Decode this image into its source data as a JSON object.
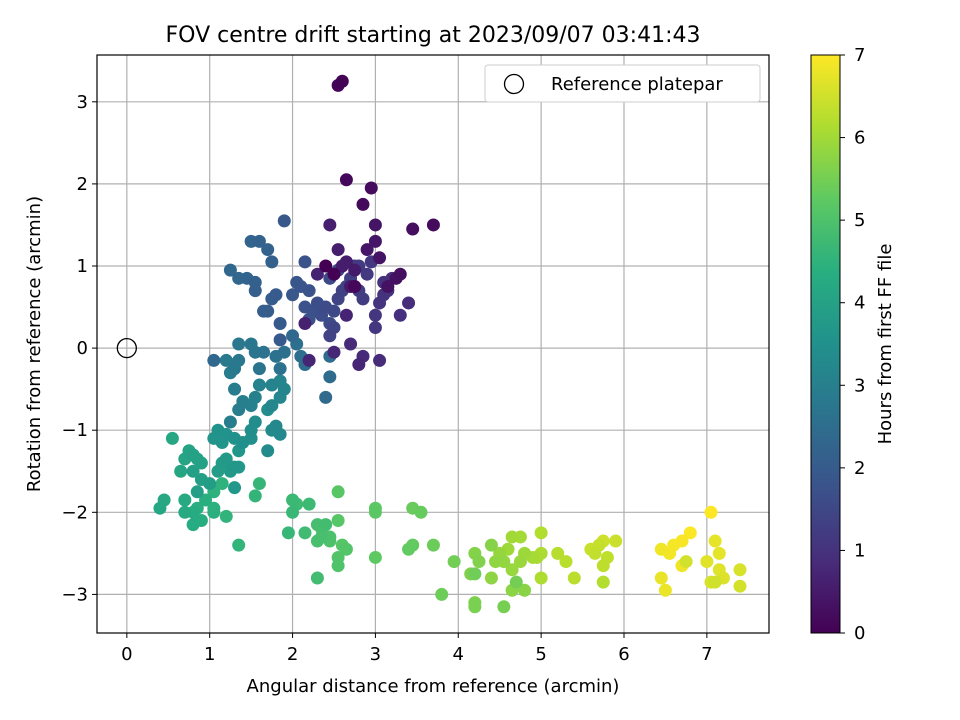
{
  "chart_data": {
    "type": "scatter",
    "title": "FOV centre drift starting at 2023/09/07 03:41:43",
    "xlabel": "Angular distance from reference (arcmin)",
    "ylabel": "Rotation from reference (arcmin)",
    "xlim": [
      -0.36,
      7.75
    ],
    "ylim": [
      -3.47,
      3.57
    ],
    "xticks": [
      0,
      1,
      2,
      3,
      4,
      5,
      6,
      7
    ],
    "yticks": [
      -3,
      -2,
      -1,
      0,
      1,
      2,
      3
    ],
    "grid": true,
    "legend": {
      "placement": "top-right",
      "entries": [
        "Reference platepar"
      ]
    },
    "colorbar": {
      "label": "Hours from first FF file",
      "range": [
        0,
        7
      ],
      "ticks": [
        0,
        1,
        2,
        3,
        4,
        5,
        6,
        7
      ],
      "colormap": "viridis"
    },
    "reference_point": {
      "x": 0,
      "y": 0
    },
    "series": [
      {
        "points": [
          [
            7.05,
            -2.0
          ],
          [
            6.8,
            -2.25
          ],
          [
            6.7,
            -2.35
          ],
          [
            6.6,
            -2.4
          ],
          [
            6.55,
            -2.5
          ],
          [
            6.45,
            -2.45
          ],
          [
            6.7,
            -2.65
          ],
          [
            6.5,
            -2.95
          ],
          [
            6.45,
            -2.8
          ],
          [
            7.1,
            -2.35
          ],
          [
            7.15,
            -2.5
          ],
          [
            7.0,
            -2.6
          ],
          [
            7.15,
            -2.7
          ],
          [
            7.2,
            -2.8
          ],
          [
            7.4,
            -2.7
          ],
          [
            7.05,
            -2.85
          ],
          [
            7.4,
            -2.9
          ],
          [
            6.75,
            -2.6
          ],
          [
            7.1,
            -2.85
          ],
          [
            5.75,
            -2.35
          ],
          [
            5.9,
            -2.35
          ],
          [
            5.6,
            -2.45
          ],
          [
            5.7,
            -2.4
          ],
          [
            5.65,
            -2.5
          ],
          [
            5.8,
            -2.55
          ],
          [
            5.75,
            -2.65
          ],
          [
            5.4,
            -2.8
          ],
          [
            5.3,
            -2.6
          ],
          [
            5.2,
            -2.5
          ],
          [
            5.75,
            -2.85
          ],
          [
            5.0,
            -2.25
          ],
          [
            5.0,
            -2.8
          ],
          [
            5.0,
            -2.5
          ],
          [
            4.95,
            -2.55
          ],
          [
            4.9,
            -2.55
          ],
          [
            4.75,
            -2.3
          ],
          [
            4.65,
            -2.3
          ],
          [
            4.6,
            -2.45
          ],
          [
            4.8,
            -2.5
          ],
          [
            4.75,
            -2.6
          ],
          [
            4.65,
            -2.7
          ],
          [
            4.5,
            -2.5
          ],
          [
            4.55,
            -2.6
          ],
          [
            4.45,
            -2.6
          ],
          [
            4.4,
            -2.8
          ],
          [
            4.65,
            -2.95
          ],
          [
            4.8,
            -2.95
          ],
          [
            4.4,
            -2.4
          ],
          [
            4.2,
            -2.5
          ],
          [
            4.25,
            -2.6
          ],
          [
            4.15,
            -2.75
          ],
          [
            4.2,
            -3.1
          ],
          [
            4.2,
            -3.15
          ],
          [
            4.55,
            -3.15
          ],
          [
            4.7,
            -2.85
          ],
          [
            3.95,
            -2.6
          ],
          [
            4.2,
            -2.75
          ],
          [
            3.8,
            -3.0
          ],
          [
            3.7,
            -2.4
          ],
          [
            3.45,
            -1.95
          ],
          [
            3.55,
            -2.0
          ],
          [
            3.45,
            -2.4
          ],
          [
            3.4,
            -2.45
          ],
          [
            3.0,
            -2.55
          ],
          [
            3.0,
            -1.95
          ],
          [
            3.0,
            -2.0
          ],
          [
            2.55,
            -1.75
          ],
          [
            2.55,
            -2.1
          ],
          [
            2.6,
            -2.4
          ],
          [
            2.65,
            -2.45
          ],
          [
            2.55,
            -2.55
          ],
          [
            2.55,
            -2.65
          ],
          [
            2.45,
            -2.35
          ],
          [
            2.45,
            -2.3
          ],
          [
            2.35,
            -2.2
          ],
          [
            2.3,
            -2.35
          ],
          [
            2.35,
            -2.3
          ],
          [
            2.3,
            -2.15
          ],
          [
            2.4,
            -2.15
          ],
          [
            2.3,
            -2.8
          ],
          [
            2.15,
            -2.25
          ],
          [
            2.05,
            -1.9
          ],
          [
            2.2,
            -1.9
          ],
          [
            2.0,
            -1.85
          ],
          [
            2.0,
            -2.0
          ],
          [
            1.95,
            -2.25
          ],
          [
            1.6,
            -1.65
          ],
          [
            1.55,
            -1.8
          ],
          [
            1.35,
            -2.4
          ],
          [
            1.2,
            -2.05
          ],
          [
            1.15,
            -1.65
          ],
          [
            1.05,
            -1.75
          ],
          [
            1.05,
            -1.95
          ],
          [
            1.05,
            -2.0
          ],
          [
            0.95,
            -1.85
          ],
          [
            0.85,
            -1.95
          ],
          [
            0.9,
            -2.1
          ],
          [
            0.8,
            -2.15
          ],
          [
            0.8,
            -2.0
          ],
          [
            0.7,
            -2.0
          ],
          [
            0.7,
            -1.85
          ],
          [
            0.45,
            -1.85
          ],
          [
            0.4,
            -1.95
          ],
          [
            0.55,
            -1.1
          ],
          [
            0.65,
            -1.5
          ],
          [
            0.7,
            -1.35
          ],
          [
            0.75,
            -1.25
          ],
          [
            0.8,
            -1.3
          ],
          [
            0.85,
            -1.35
          ],
          [
            0.9,
            -1.4
          ],
          [
            0.8,
            -1.5
          ],
          [
            0.9,
            -1.6
          ],
          [
            0.85,
            -1.75
          ],
          [
            1.0,
            -1.65
          ],
          [
            1.1,
            -1.5
          ],
          [
            1.15,
            -1.4
          ],
          [
            1.2,
            -1.35
          ],
          [
            1.25,
            -1.5
          ],
          [
            1.3,
            -1.45
          ],
          [
            1.35,
            -1.45
          ],
          [
            1.3,
            -1.7
          ],
          [
            1.35,
            -1.25
          ],
          [
            1.15,
            -1.15
          ],
          [
            1.05,
            -1.1
          ],
          [
            1.1,
            -1.0
          ],
          [
            1.2,
            -1.05
          ],
          [
            1.3,
            -1.1
          ],
          [
            1.4,
            -1.15
          ],
          [
            1.5,
            -1.1
          ],
          [
            1.5,
            -1.0
          ],
          [
            1.55,
            -0.9
          ],
          [
            1.7,
            -0.75
          ],
          [
            1.7,
            -1.25
          ],
          [
            1.75,
            -1.0
          ],
          [
            1.85,
            -1.05
          ],
          [
            1.8,
            -0.95
          ],
          [
            1.75,
            -0.7
          ],
          [
            1.85,
            -0.6
          ],
          [
            1.9,
            -0.5
          ],
          [
            1.85,
            -0.4
          ],
          [
            1.75,
            -0.45
          ],
          [
            1.6,
            -0.45
          ],
          [
            1.55,
            -0.6
          ],
          [
            1.5,
            -0.7
          ],
          [
            1.4,
            -0.65
          ],
          [
            1.35,
            -0.75
          ],
          [
            1.25,
            -0.9
          ],
          [
            1.3,
            -0.5
          ],
          [
            1.25,
            -0.3
          ],
          [
            1.2,
            -0.15
          ],
          [
            1.3,
            -0.25
          ],
          [
            1.35,
            -0.15
          ],
          [
            1.35,
            0.05
          ],
          [
            1.5,
            0.05
          ],
          [
            1.55,
            -0.05
          ],
          [
            1.6,
            -0.25
          ],
          [
            1.65,
            -0.05
          ],
          [
            1.8,
            -0.1
          ],
          [
            1.85,
            -0.25
          ],
          [
            1.9,
            -0.05
          ],
          [
            2.05,
            0.05
          ],
          [
            2.1,
            -0.1
          ],
          [
            2.15,
            -0.2
          ],
          [
            2.45,
            -0.1
          ],
          [
            2.45,
            -0.35
          ],
          [
            2.4,
            -0.6
          ],
          [
            2.0,
            0.15
          ],
          [
            1.05,
            -0.15
          ],
          [
            1.25,
            0.95
          ],
          [
            1.35,
            0.85
          ],
          [
            1.45,
            0.85
          ],
          [
            1.5,
            1.3
          ],
          [
            1.6,
            1.3
          ],
          [
            1.7,
            1.2
          ],
          [
            1.75,
            1.05
          ],
          [
            1.55,
            0.8
          ],
          [
            1.55,
            0.7
          ],
          [
            1.65,
            0.45
          ],
          [
            1.7,
            0.45
          ],
          [
            1.75,
            0.6
          ],
          [
            1.8,
            0.65
          ],
          [
            1.85,
            0.3
          ],
          [
            1.85,
            0.1
          ],
          [
            1.9,
            1.55
          ],
          [
            2.0,
            0.65
          ],
          [
            2.05,
            0.8
          ],
          [
            2.1,
            0.75
          ],
          [
            2.15,
            1.05
          ],
          [
            2.2,
            0.7
          ],
          [
            2.15,
            0.5
          ],
          [
            2.2,
            0.35
          ],
          [
            2.25,
            0.45
          ],
          [
            2.3,
            0.55
          ],
          [
            2.35,
            0.4
          ],
          [
            2.4,
            0.5
          ],
          [
            2.45,
            0.3
          ],
          [
            2.5,
            0.45
          ],
          [
            2.45,
            0.85
          ],
          [
            2.5,
            0.9
          ],
          [
            2.55,
            0.95
          ],
          [
            2.5,
            0.25
          ],
          [
            2.45,
            0.15
          ],
          [
            2.55,
            0.6
          ],
          [
            2.6,
            0.7
          ],
          [
            2.65,
            0.75
          ],
          [
            2.7,
            0.85
          ],
          [
            2.75,
            1.0
          ],
          [
            2.8,
            0.7
          ],
          [
            2.85,
            0.6
          ],
          [
            2.8,
            1.0
          ],
          [
            2.9,
            0.9
          ],
          [
            2.95,
            1.05
          ],
          [
            3.0,
            0.4
          ],
          [
            3.0,
            0.25
          ],
          [
            3.05,
            0.55
          ],
          [
            3.1,
            0.65
          ],
          [
            3.15,
            0.7
          ],
          [
            3.1,
            0.8
          ],
          [
            3.2,
            0.85
          ],
          [
            3.3,
            0.4
          ],
          [
            3.4,
            0.55
          ],
          [
            3.05,
            -0.15
          ],
          [
            2.85,
            -0.1
          ],
          [
            2.7,
            0.05
          ],
          [
            2.5,
            -0.05
          ],
          [
            2.8,
            -0.2
          ],
          [
            2.2,
            -0.15
          ],
          [
            2.65,
            0.4
          ],
          [
            2.3,
            0.9
          ],
          [
            2.15,
            0.3
          ],
          [
            2.45,
            1.5
          ],
          [
            2.55,
            1.2
          ],
          [
            2.6,
            1.0
          ],
          [
            2.65,
            1.05
          ],
          [
            2.75,
            0.95
          ],
          [
            2.7,
            0.75
          ],
          [
            2.9,
            1.2
          ],
          [
            3.0,
            1.3
          ],
          [
            3.0,
            1.5
          ],
          [
            3.05,
            1.1
          ],
          [
            3.15,
            0.75
          ],
          [
            3.25,
            0.85
          ],
          [
            3.3,
            0.9
          ],
          [
            3.45,
            1.45
          ],
          [
            3.7,
            1.5
          ],
          [
            2.95,
            1.95
          ],
          [
            2.85,
            1.75
          ],
          [
            2.65,
            2.05
          ],
          [
            2.75,
            0.75
          ],
          [
            2.55,
            3.2
          ],
          [
            2.6,
            3.25
          ],
          [
            2.5,
            0.9
          ],
          [
            2.4,
            1.0
          ]
        ]
      }
    ]
  }
}
